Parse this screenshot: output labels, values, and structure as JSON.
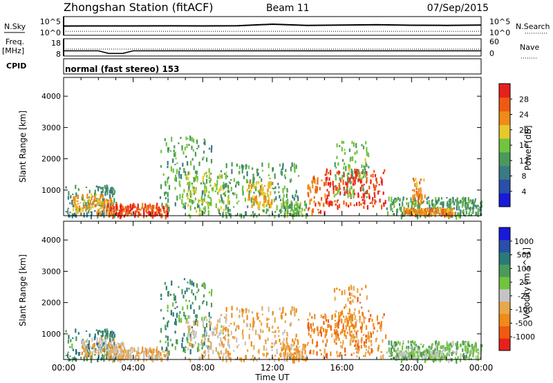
{
  "header": {
    "station": "Zhongshan Station (fitACF)",
    "beam": "Beam 11",
    "date": "07/Sep/2015"
  },
  "top_panels": {
    "nsky_label": "N.Sky",
    "nsky_ticks": [
      "10^5",
      "10^0"
    ],
    "nsearch_label": "N.Search",
    "nsearch_ticks": [
      "10^5",
      "10^0"
    ],
    "freq_label": "Freq.",
    "freq_unit": "[MHz]",
    "freq_ticks": [
      "18",
      "8"
    ],
    "nave_label": "Nave",
    "nave_ticks": [
      "60",
      "0"
    ],
    "cpid_label": "CPID",
    "cpid_text": "normal (fast stereo) 153"
  },
  "colors": {
    "power": [
      "#1919d8",
      "#2a4fa8",
      "#3a7a84",
      "#4b9a5a",
      "#71c43e",
      "#e8c82a",
      "#f08a18",
      "#ef5a10",
      "#e8201c"
    ],
    "velocity": [
      "#e8201c",
      "#ef5a10",
      "#f08a18",
      "#e8a84a",
      "#c4c4c4",
      "#71c43e",
      "#4b9a5a",
      "#2a7a7a",
      "#2a4fa8",
      "#1919d8"
    ]
  },
  "chart_data": [
    {
      "type": "line",
      "title": "N.Sky / N.Search",
      "x": [
        0,
        2,
        4,
        6,
        8,
        10,
        12,
        14,
        16,
        18,
        20,
        22,
        24
      ],
      "series": [
        {
          "name": "N.Sky",
          "values": [
            300,
            320,
            310,
            330,
            320,
            360,
            900,
            420,
            520,
            650,
            480,
            450,
            520
          ]
        },
        {
          "name": "N.Search",
          "values": [
            12,
            12,
            12,
            12,
            12,
            12,
            12,
            12,
            12,
            12,
            12,
            12,
            12
          ]
        }
      ],
      "ylim": [
        1,
        100000
      ]
    },
    {
      "type": "line",
      "title": "Freq. / Nave",
      "x": [
        0,
        2,
        2.6,
        3.4,
        4,
        6,
        8,
        10,
        12,
        14,
        16,
        18,
        20,
        22,
        24
      ],
      "series": [
        {
          "name": "Freq.",
          "values": [
            11,
            11,
            9.5,
            9.5,
            11,
            11,
            11,
            11,
            11,
            11,
            11,
            11,
            11,
            11,
            11
          ]
        },
        {
          "name": "Nave",
          "values": [
            24,
            24,
            24,
            24,
            24,
            24,
            24,
            24,
            24,
            24,
            24,
            24,
            24,
            24,
            24
          ]
        }
      ],
      "ylim": [
        8,
        18
      ]
    },
    {
      "type": "heatmap",
      "title": "Power",
      "xlabel": "",
      "ylabel": "Slant Range [km]",
      "x_ticks": [
        "00:00",
        "04:00",
        "08:00",
        "12:00",
        "16:00",
        "20:00",
        "00:00"
      ],
      "xlim": [
        0,
        24
      ],
      "ylim": [
        180,
        4600
      ],
      "y_ticks": [
        1000,
        2000,
        3000,
        4000
      ],
      "colorbar_label": "Power [dB]",
      "colorbar_ticks": [
        "4",
        "8",
        "12",
        "16",
        "20",
        "24",
        "28"
      ],
      "zlim": [
        0,
        30
      ],
      "regions": [
        {
          "t0": 0.1,
          "t1": 3.0,
          "r0": 200,
          "r1": 1200,
          "value": 10
        },
        {
          "t0": 0.5,
          "t1": 2.8,
          "r0": 300,
          "r1": 900,
          "value": 20
        },
        {
          "t0": 2.5,
          "t1": 6.0,
          "r0": 200,
          "r1": 600,
          "value": 26
        },
        {
          "t0": 5.5,
          "t1": 8.5,
          "r0": 400,
          "r1": 2800,
          "value": 12
        },
        {
          "t0": 7.0,
          "t1": 9.5,
          "r0": 200,
          "r1": 1600,
          "value": 16
        },
        {
          "t0": 9.0,
          "t1": 13.5,
          "r0": 200,
          "r1": 1900,
          "value": 12
        },
        {
          "t0": 10.5,
          "t1": 12.0,
          "r0": 500,
          "r1": 1300,
          "value": 20
        },
        {
          "t0": 12.5,
          "t1": 14.0,
          "r0": 200,
          "r1": 700,
          "value": 14
        },
        {
          "t0": 14.0,
          "t1": 15.0,
          "r0": 300,
          "r1": 1500,
          "value": 24
        },
        {
          "t0": 15.0,
          "t1": 18.5,
          "r0": 500,
          "r1": 1700,
          "value": 27
        },
        {
          "t0": 15.5,
          "t1": 17.5,
          "r0": 800,
          "r1": 2600,
          "value": 14
        },
        {
          "t0": 18.5,
          "t1": 24.0,
          "r0": 200,
          "r1": 800,
          "value": 12
        },
        {
          "t0": 19.5,
          "t1": 22.5,
          "r0": 250,
          "r1": 450,
          "value": 22
        },
        {
          "t0": 20.0,
          "t1": 20.8,
          "r0": 600,
          "r1": 1400,
          "value": 22
        }
      ]
    },
    {
      "type": "heatmap",
      "title": "Velocity",
      "xlabel": "Time UT",
      "ylabel": "Slant Range [km]",
      "x_ticks": [
        "00:00",
        "04:00",
        "08:00",
        "12:00",
        "16:00",
        "20:00",
        "00:00"
      ],
      "xlim": [
        0,
        24
      ],
      "ylim": [
        180,
        4600
      ],
      "y_ticks": [
        1000,
        2000,
        3000,
        4000
      ],
      "colorbar_label": "Velocity [m s^-1]",
      "colorbar_ticks": [
        "-1000",
        "-500",
        "-100",
        "-25",
        "25",
        "100",
        "500",
        "1000"
      ],
      "zlim": [
        -1200,
        1200
      ],
      "regions": [
        {
          "t0": 0.1,
          "t1": 3.0,
          "r0": 200,
          "r1": 1200,
          "value": 500
        },
        {
          "t0": 1.0,
          "t1": 3.5,
          "r0": 300,
          "r1": 900,
          "value": -300
        },
        {
          "t0": 2.5,
          "t1": 6.0,
          "r0": 200,
          "r1": 600,
          "value": -300
        },
        {
          "t0": 5.5,
          "t1": 8.5,
          "r0": 400,
          "r1": 2800,
          "value": 400
        },
        {
          "t0": 7.0,
          "t1": 9.5,
          "r0": 200,
          "r1": 1600,
          "value": -200
        },
        {
          "t0": 9.0,
          "t1": 13.5,
          "r0": 200,
          "r1": 1900,
          "value": -400
        },
        {
          "t0": 12.5,
          "t1": 14.0,
          "r0": 200,
          "r1": 700,
          "value": -400
        },
        {
          "t0": 14.0,
          "t1": 18.5,
          "r0": 300,
          "r1": 1700,
          "value": -600
        },
        {
          "t0": 15.5,
          "t1": 17.5,
          "r0": 800,
          "r1": 2600,
          "value": -500
        },
        {
          "t0": 18.5,
          "t1": 24.0,
          "r0": 200,
          "r1": 800,
          "value": 150
        },
        {
          "t0": 19.0,
          "t1": 22.0,
          "r0": 250,
          "r1": 500,
          "value": 80
        }
      ]
    }
  ]
}
